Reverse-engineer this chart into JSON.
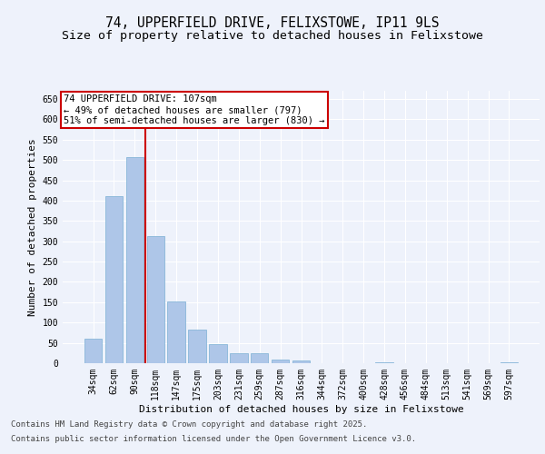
{
  "title_line1": "74, UPPERFIELD DRIVE, FELIXSTOWE, IP11 9LS",
  "title_line2": "Size of property relative to detached houses in Felixstowe",
  "xlabel": "Distribution of detached houses by size in Felixstowe",
  "ylabel": "Number of detached properties",
  "categories": [
    "34sqm",
    "62sqm",
    "90sqm",
    "118sqm",
    "147sqm",
    "175sqm",
    "203sqm",
    "231sqm",
    "259sqm",
    "287sqm",
    "316sqm",
    "344sqm",
    "372sqm",
    "400sqm",
    "428sqm",
    "456sqm",
    "484sqm",
    "513sqm",
    "541sqm",
    "569sqm",
    "597sqm"
  ],
  "values": [
    60,
    412,
    507,
    312,
    152,
    82,
    47,
    25,
    25,
    8,
    7,
    0,
    0,
    0,
    3,
    0,
    0,
    0,
    0,
    0,
    2
  ],
  "bar_color": "#aec6e8",
  "bar_edge_color": "#7aafd4",
  "vline_x": 2.5,
  "vline_color": "#cc0000",
  "annotation_text": "74 UPPERFIELD DRIVE: 107sqm\n← 49% of detached houses are smaller (797)\n51% of semi-detached houses are larger (830) →",
  "annotation_box_color": "#ffffff",
  "annotation_box_edge_color": "#cc0000",
  "ylim": [
    0,
    670
  ],
  "yticks": [
    0,
    50,
    100,
    150,
    200,
    250,
    300,
    350,
    400,
    450,
    500,
    550,
    600,
    650
  ],
  "bg_color": "#eef2fb",
  "plot_bg_color": "#eef2fb",
  "footer_line1": "Contains HM Land Registry data © Crown copyright and database right 2025.",
  "footer_line2": "Contains public sector information licensed under the Open Government Licence v3.0.",
  "grid_color": "#ffffff",
  "title_fontsize": 10.5,
  "subtitle_fontsize": 9.5,
  "label_fontsize": 8,
  "tick_fontsize": 7,
  "footer_fontsize": 6.5,
  "annot_fontsize": 7.5
}
